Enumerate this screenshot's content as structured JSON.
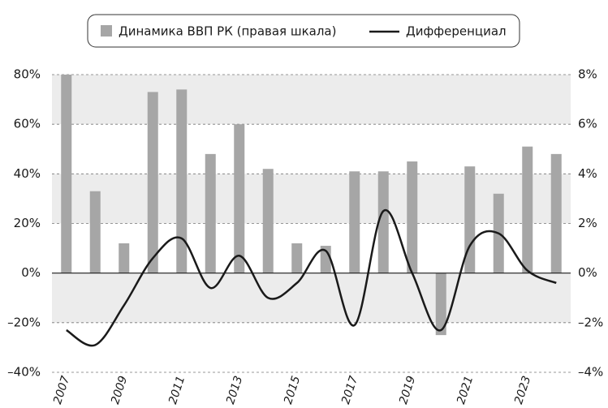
{
  "chart_data": {
    "type": "bar_line",
    "categories": [
      "2007",
      null,
      "2009",
      null,
      "2011",
      null,
      "2013",
      null,
      "2015",
      null,
      "2017",
      null,
      "2019",
      null,
      "2021",
      null,
      "2023",
      null
    ],
    "series": [
      {
        "name": "Динамика ВВП РК (правая шкала)",
        "type": "bar",
        "axis": "y2",
        "color": "#a6a6a6",
        "values": [
          8.0,
          3.3,
          1.2,
          7.3,
          7.4,
          4.8,
          6.0,
          4.2,
          1.2,
          1.1,
          4.1,
          4.1,
          4.5,
          -2.5,
          4.3,
          3.2,
          5.1,
          4.8
        ]
      },
      {
        "name": "Дифференциал",
        "type": "line",
        "axis": "y",
        "color": "#1a1a1a",
        "values": [
          -23,
          -29,
          -13,
          6,
          14,
          -6,
          7,
          -10,
          -4,
          9,
          -21,
          25,
          0,
          -23,
          11,
          16,
          1,
          -4
        ]
      }
    ],
    "ylim": [
      -40,
      80
    ],
    "yticks": [
      {
        "value": -40,
        "label": "–40%"
      },
      {
        "value": -20,
        "label": "–20%"
      },
      {
        "value": 0,
        "label": "0%"
      },
      {
        "value": 20,
        "label": "20%"
      },
      {
        "value": 40,
        "label": "40%"
      },
      {
        "value": 60,
        "label": "60%"
      },
      {
        "value": 80,
        "label": "80%"
      }
    ],
    "y2lim": [
      -4,
      8
    ],
    "y2ticks": [
      {
        "value": -4,
        "label": "–4%"
      },
      {
        "value": -2,
        "label": "–2%"
      },
      {
        "value": 0,
        "label": "0%"
      },
      {
        "value": 2,
        "label": "2%"
      },
      {
        "value": 4,
        "label": "4%"
      },
      {
        "value": 6,
        "label": "6%"
      },
      {
        "value": 8,
        "label": "8%"
      }
    ],
    "grid": true,
    "shaded_bands": true,
    "legend": "top"
  }
}
